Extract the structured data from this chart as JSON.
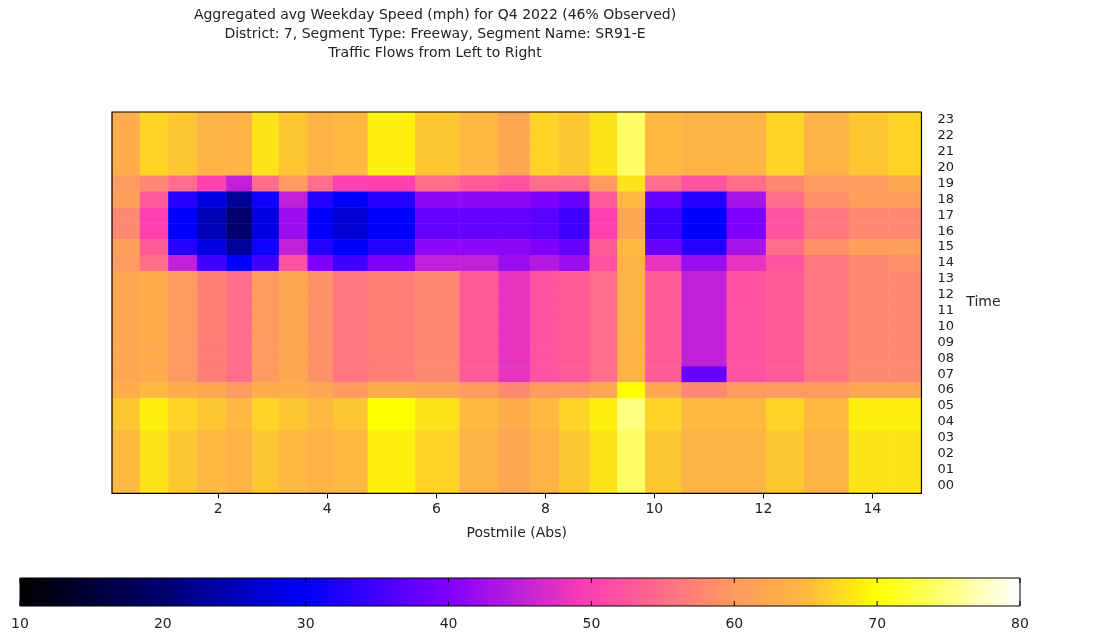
{
  "chart_data": {
    "type": "heatmap",
    "title": "Aggregated avg Weekday Speed (mph) for Q4 2022 (46% Observed)",
    "subtitle": "District: 7, Segment Type: Freeway, Segment Name: SR91-E",
    "annotations": [
      "Traffic Flows from Left to Right"
    ],
    "xlabel": "Postmile (Abs)",
    "ylabel": "Time",
    "x": [
      0.29,
      0.83,
      1.33,
      1.89,
      2.4,
      2.84,
      3.38,
      3.89,
      4.31,
      5.17,
      6.05,
      6.79,
      7.49,
      7.95,
      8.55,
      9.07,
      9.57,
      10.09,
      10.9,
      11.75,
      12.34,
      13.15,
      13.98,
      14.6
    ],
    "xlim": [
      0.05,
      14.9
    ],
    "xticks": [
      2,
      4,
      6,
      8,
      10,
      12,
      14
    ],
    "y_categories": [
      "23",
      "22",
      "21",
      "20",
      "19",
      "18",
      "17",
      "16",
      "15",
      "14",
      "13",
      "12",
      "11",
      "10",
      "09",
      "08",
      "07",
      "06",
      "05",
      "04",
      "03",
      "02",
      "01",
      "00"
    ],
    "cells": [
      [
        63,
        67,
        66,
        64,
        64,
        68,
        66,
        64,
        65,
        69,
        66,
        65,
        62,
        67,
        66,
        68,
        74,
        65,
        64,
        64,
        67,
        64,
        66,
        67
      ],
      [
        63,
        67,
        66,
        64,
        64,
        68,
        66,
        64,
        65,
        69,
        66,
        65,
        62,
        67,
        66,
        68,
        74,
        65,
        64,
        64,
        67,
        64,
        66,
        67
      ],
      [
        63,
        67,
        66,
        64,
        64,
        68,
        66,
        64,
        65,
        69,
        66,
        65,
        62,
        67,
        66,
        68,
        74,
        65,
        64,
        64,
        67,
        64,
        66,
        67
      ],
      [
        63,
        67,
        66,
        64,
        64,
        68,
        66,
        64,
        65,
        69,
        66,
        65,
        62,
        67,
        66,
        68,
        74,
        65,
        64,
        64,
        67,
        64,
        66,
        67
      ],
      [
        60,
        58,
        55,
        50,
        45,
        55,
        60,
        55,
        50,
        50,
        55,
        53,
        52,
        55,
        55,
        60,
        68,
        55,
        52,
        55,
        58,
        60,
        60,
        62
      ],
      [
        61,
        53,
        33,
        28,
        23,
        31,
        45,
        33,
        30,
        33,
        41,
        41,
        41,
        40,
        38,
        53,
        65,
        38,
        33,
        43,
        55,
        59,
        61,
        61
      ],
      [
        58,
        50,
        30,
        25,
        20,
        28,
        42,
        30,
        27,
        30,
        38,
        38,
        38,
        37,
        35,
        50,
        62,
        35,
        30,
        40,
        52,
        56,
        58,
        58
      ],
      [
        58,
        50,
        30,
        25,
        20,
        28,
        42,
        30,
        27,
        30,
        38,
        38,
        38,
        37,
        35,
        50,
        62,
        35,
        30,
        40,
        52,
        56,
        58,
        58
      ],
      [
        61,
        53,
        33,
        28,
        23,
        31,
        45,
        33,
        30,
        33,
        41,
        41,
        41,
        40,
        38,
        53,
        65,
        38,
        33,
        43,
        55,
        59,
        61,
        61
      ],
      [
        60,
        55,
        45,
        35,
        30,
        35,
        52,
        40,
        35,
        40,
        45,
        45,
        42,
        44,
        42,
        52,
        64,
        48,
        42,
        48,
        52,
        56,
        58,
        59
      ],
      [
        62,
        63,
        60,
        57,
        55,
        60,
        62,
        59,
        56,
        57,
        58,
        53,
        48,
        52,
        53,
        55,
        64,
        53,
        45,
        52,
        53,
        56,
        58,
        58
      ],
      [
        62,
        63,
        60,
        57,
        55,
        60,
        62,
        59,
        56,
        57,
        58,
        53,
        48,
        52,
        53,
        55,
        64,
        53,
        45,
        52,
        53,
        56,
        58,
        58
      ],
      [
        62,
        63,
        60,
        57,
        55,
        60,
        62,
        59,
        56,
        57,
        58,
        53,
        48,
        52,
        53,
        55,
        64,
        53,
        45,
        52,
        53,
        56,
        58,
        58
      ],
      [
        62,
        63,
        60,
        57,
        55,
        60,
        62,
        59,
        56,
        57,
        58,
        53,
        48,
        52,
        53,
        55,
        64,
        53,
        45,
        52,
        53,
        56,
        58,
        58
      ],
      [
        62,
        63,
        60,
        57,
        55,
        60,
        62,
        59,
        56,
        57,
        58,
        53,
        48,
        52,
        53,
        55,
        64,
        53,
        45,
        52,
        53,
        56,
        58,
        58
      ],
      [
        62,
        63,
        60,
        57,
        55,
        60,
        62,
        59,
        56,
        57,
        58,
        53,
        48,
        52,
        53,
        55,
        64,
        53,
        45,
        52,
        53,
        56,
        58,
        58
      ],
      [
        62,
        63,
        60,
        57,
        55,
        60,
        62,
        59,
        56,
        57,
        58,
        53,
        48,
        52,
        53,
        55,
        64,
        53,
        38,
        52,
        53,
        56,
        58,
        58
      ],
      [
        63,
        65,
        63,
        62,
        60,
        63,
        63,
        62,
        60,
        63,
        62,
        60,
        58,
        60,
        60,
        62,
        70,
        62,
        58,
        60,
        60,
        60,
        62,
        62
      ],
      [
        66,
        69,
        67,
        66,
        65,
        67,
        66,
        65,
        66,
        70,
        68,
        65,
        63,
        65,
        67,
        69,
        75,
        67,
        65,
        65,
        67,
        65,
        69,
        69
      ],
      [
        66,
        69,
        67,
        66,
        65,
        67,
        66,
        65,
        66,
        70,
        68,
        65,
        63,
        65,
        67,
        69,
        75,
        67,
        65,
        65,
        67,
        65,
        69,
        69
      ],
      [
        65,
        68,
        66,
        65,
        64,
        66,
        65,
        64,
        65,
        69,
        67,
        64,
        62,
        64,
        66,
        68,
        74,
        66,
        64,
        64,
        66,
        64,
        68,
        68
      ],
      [
        65,
        68,
        66,
        65,
        64,
        66,
        65,
        64,
        65,
        69,
        67,
        64,
        62,
        64,
        66,
        68,
        74,
        66,
        64,
        64,
        66,
        64,
        68,
        68
      ],
      [
        65,
        68,
        66,
        65,
        64,
        66,
        65,
        64,
        65,
        69,
        67,
        64,
        62,
        64,
        66,
        68,
        74,
        66,
        64,
        64,
        66,
        64,
        68,
        68
      ],
      [
        65,
        68,
        66,
        65,
        64,
        66,
        65,
        64,
        65,
        69,
        67,
        64,
        62,
        64,
        66,
        68,
        74,
        66,
        64,
        64,
        66,
        64,
        68,
        68
      ]
    ],
    "clim": [
      10,
      80
    ],
    "cticks": [
      10,
      20,
      30,
      40,
      50,
      60,
      70,
      80
    ]
  }
}
